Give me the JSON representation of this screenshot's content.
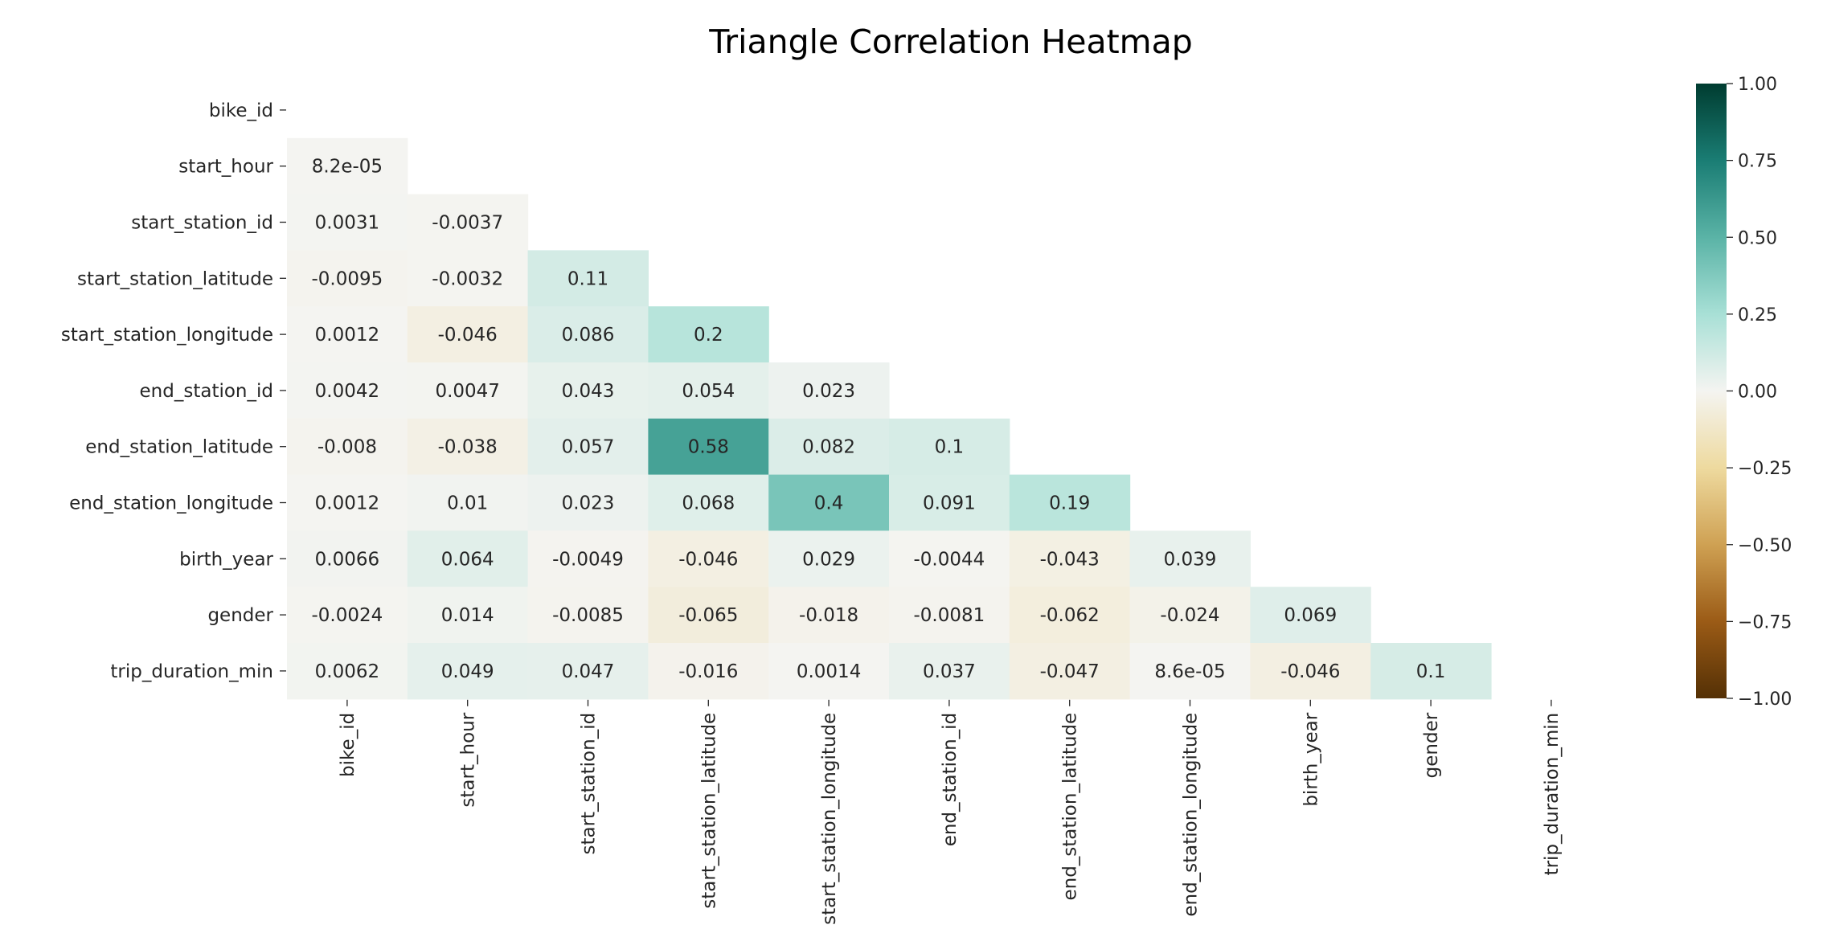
{
  "chart_data": {
    "type": "heatmap",
    "title": "Triangle Correlation Heatmap",
    "variables": [
      "bike_id",
      "start_hour",
      "start_station_id",
      "start_station_latitude",
      "start_station_longitude",
      "end_station_id",
      "end_station_latitude",
      "end_station_longitude",
      "birth_year",
      "gender",
      "trip_duration_min"
    ],
    "mask": "upper-triangle-including-diagonal",
    "matrix": [
      [],
      [
        8.2e-05
      ],
      [
        0.0031,
        -0.0037
      ],
      [
        -0.0095,
        -0.0032,
        0.11
      ],
      [
        0.0012,
        -0.046,
        0.086,
        0.2
      ],
      [
        0.0042,
        0.0047,
        0.043,
        0.054,
        0.023
      ],
      [
        -0.008,
        -0.038,
        0.057,
        0.58,
        0.082,
        0.1
      ],
      [
        0.0012,
        0.01,
        0.023,
        0.068,
        0.4,
        0.091,
        0.19
      ],
      [
        0.0066,
        0.064,
        -0.0049,
        -0.046,
        0.029,
        -0.0044,
        -0.043,
        0.039
      ],
      [
        -0.0024,
        0.014,
        -0.0085,
        -0.065,
        -0.018,
        -0.0081,
        -0.062,
        -0.024,
        0.069
      ],
      [
        0.0062,
        0.049,
        0.047,
        -0.016,
        0.0014,
        0.037,
        -0.047,
        8.6e-05,
        -0.046,
        0.1
      ]
    ],
    "labels": [
      [],
      [
        "8.2e-05"
      ],
      [
        "0.0031",
        "-0.0037"
      ],
      [
        "-0.0095",
        "-0.0032",
        "0.11"
      ],
      [
        "0.0012",
        "-0.046",
        "0.086",
        "0.2"
      ],
      [
        "0.0042",
        "0.0047",
        "0.043",
        "0.054",
        "0.023"
      ],
      [
        "-0.008",
        "-0.038",
        "0.057",
        "0.58",
        "0.082",
        "0.1"
      ],
      [
        "0.0012",
        "0.01",
        "0.023",
        "0.068",
        "0.4",
        "0.091",
        "0.19"
      ],
      [
        "0.0066",
        "0.064",
        "-0.0049",
        "-0.046",
        "0.029",
        "-0.0044",
        "-0.043",
        "0.039"
      ],
      [
        "-0.0024",
        "0.014",
        "-0.0085",
        "-0.065",
        "-0.018",
        "-0.0081",
        "-0.062",
        "-0.024",
        "0.069"
      ],
      [
        "0.0062",
        "0.049",
        "0.047",
        "-0.016",
        "0.0014",
        "0.037",
        "-0.047",
        "8.6e-05",
        "-0.046",
        "0.1"
      ]
    ],
    "colormap": "BrBG",
    "vmin": -1,
    "vmax": 1,
    "colorbar_ticks": [
      {
        "value": 1,
        "label": "1.00"
      },
      {
        "value": 0.75,
        "label": "0.75"
      },
      {
        "value": 0.5,
        "label": "0.50"
      },
      {
        "value": 0.25,
        "label": "0.25"
      },
      {
        "value": 0,
        "label": "0.00"
      },
      {
        "value": -0.25,
        "label": "−0.25"
      },
      {
        "value": -0.5,
        "label": "−0.50"
      },
      {
        "value": -0.75,
        "label": "−0.75"
      },
      {
        "value": -1,
        "label": "−1.00"
      }
    ],
    "colormap_stops": [
      {
        "value": -1,
        "color": "#543005"
      },
      {
        "value": -0.75,
        "color": "#9b5b16"
      },
      {
        "value": -0.5,
        "color": "#cfa153"
      },
      {
        "value": -0.25,
        "color": "#eeda9f"
      },
      {
        "value": 0,
        "color": "#f4f4f1"
      },
      {
        "value": 0.25,
        "color": "#a8e0d6"
      },
      {
        "value": 0.5,
        "color": "#5ab3a6"
      },
      {
        "value": 0.75,
        "color": "#1a7d74"
      },
      {
        "value": 1,
        "color": "#003c30"
      }
    ]
  }
}
